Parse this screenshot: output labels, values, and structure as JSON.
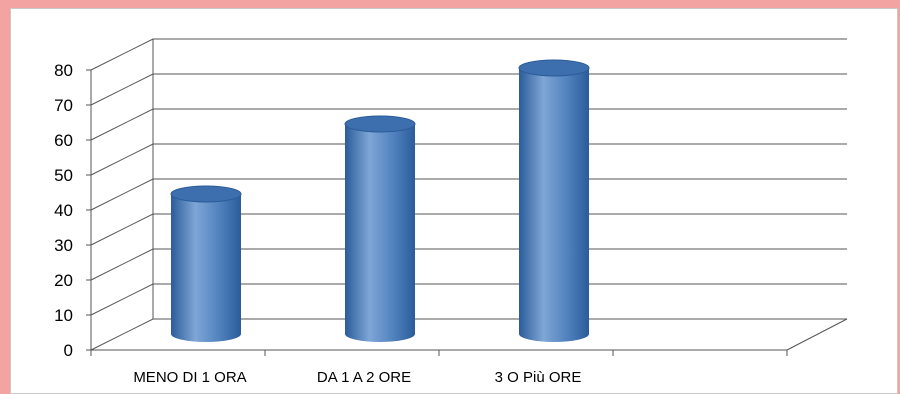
{
  "colors": {
    "page_edge": "#f4a3a3",
    "bar_main": "#4f81bd",
    "bar_dark": "#2b5c9a",
    "bar_light": "#7fa6d6",
    "bar_top": "#3d6fae",
    "grid": "#555555"
  },
  "chart_data": {
    "type": "bar",
    "style": "3d-cylinder",
    "categories": [
      "MENO DI 1 ORA",
      "DA 1 A 2 ORE",
      "3 O Più ORE"
    ],
    "values": [
      40,
      60,
      76
    ],
    "ylim": [
      0,
      80
    ],
    "yticks": [
      0,
      10,
      20,
      30,
      40,
      50,
      60,
      70,
      80
    ],
    "grid": true,
    "legend": "none",
    "title": "",
    "xlabel": "",
    "ylabel": ""
  }
}
